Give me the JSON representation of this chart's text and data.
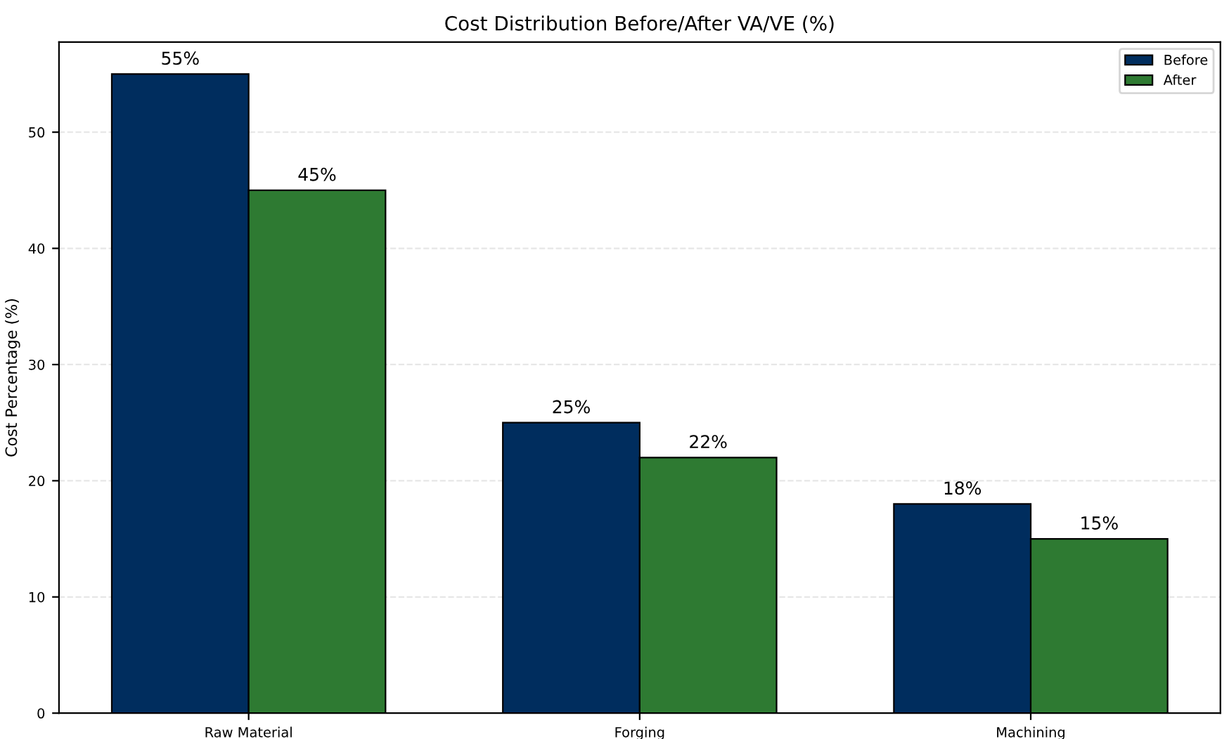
{
  "chart_data": {
    "type": "bar",
    "title": "Cost Distribution Before/After VA/VE (%)",
    "ylabel": "Cost Percentage (%)",
    "categories": [
      "Raw Material",
      "Forging",
      "Machining"
    ],
    "series": [
      {
        "name": "Before",
        "color": "#002d5e",
        "values": [
          55,
          25,
          18
        ],
        "value_labels": [
          "55%",
          "25%",
          "18%"
        ]
      },
      {
        "name": "After",
        "color": "#2e7a32",
        "values": [
          45,
          22,
          15
        ],
        "value_labels": [
          "45%",
          "22%",
          "15%"
        ]
      }
    ],
    "ylim": [
      0,
      57.75
    ],
    "yticks": [
      0,
      10,
      20,
      30,
      40,
      50
    ],
    "grid": "y",
    "legend": "top right"
  }
}
